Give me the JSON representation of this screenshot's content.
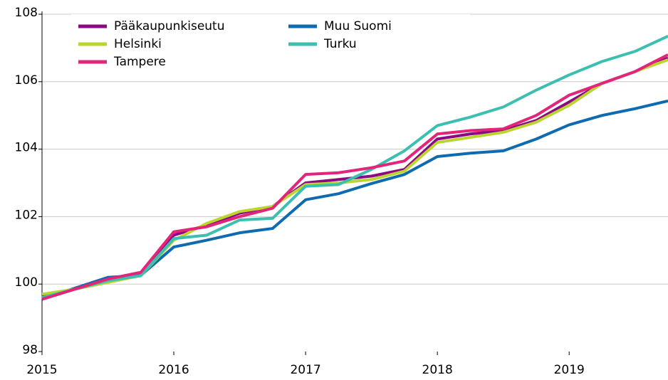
{
  "chart_data": {
    "type": "line",
    "x": [
      2015,
      2015.25,
      2015.5,
      2015.75,
      2016,
      2016.25,
      2016.5,
      2016.75,
      2017,
      2017.25,
      2017.5,
      2017.75,
      2018,
      2018.25,
      2018.5,
      2018.75,
      2019,
      2019.25,
      2019.5,
      2019.75
    ],
    "xlim": [
      2015,
      2019.75
    ],
    "xticks": [
      2015,
      2016,
      2017,
      2018,
      2019
    ],
    "ylim": [
      98,
      108
    ],
    "yticks": [
      98,
      100,
      102,
      104,
      106,
      108
    ],
    "grid": true,
    "legend": "top-left",
    "series": [
      {
        "name": "Pääkaupunkiseutu",
        "color": "#8b0a83",
        "values": [
          99.65,
          99.85,
          100.1,
          100.3,
          101.45,
          101.75,
          102.1,
          102.3,
          103.0,
          103.1,
          103.2,
          103.4,
          104.3,
          104.45,
          104.55,
          104.85,
          105.4,
          105.95,
          106.3,
          106.7
        ]
      },
      {
        "name": "Muu Suomi",
        "color": "#0f6bb0",
        "values": [
          99.56,
          99.88,
          100.2,
          100.26,
          101.1,
          101.3,
          101.52,
          101.65,
          102.5,
          102.68,
          102.98,
          103.25,
          103.78,
          103.88,
          103.95,
          104.3,
          104.72,
          105.0,
          105.2,
          105.43
        ]
      },
      {
        "name": "Helsinki",
        "color": "#b9d52e",
        "values": [
          99.7,
          99.85,
          100.05,
          100.25,
          101.3,
          101.8,
          102.15,
          102.3,
          102.95,
          103.0,
          103.1,
          103.35,
          104.2,
          104.35,
          104.5,
          104.8,
          105.3,
          105.95,
          106.3,
          106.65
        ]
      },
      {
        "name": "Turku",
        "color": "#3cbfb0",
        "values": [
          99.6,
          99.85,
          100.1,
          100.25,
          101.35,
          101.45,
          101.9,
          101.95,
          102.9,
          102.95,
          103.4,
          103.95,
          104.7,
          104.95,
          105.25,
          105.75,
          106.2,
          106.6,
          106.9,
          107.35
        ]
      },
      {
        "name": "Tampere",
        "color": "#e2247a",
        "values": [
          99.55,
          99.85,
          100.15,
          100.35,
          101.55,
          101.7,
          102.0,
          102.25,
          103.25,
          103.3,
          103.45,
          103.65,
          104.45,
          104.55,
          104.6,
          105.0,
          105.6,
          105.95,
          106.3,
          106.8
        ]
      }
    ]
  }
}
